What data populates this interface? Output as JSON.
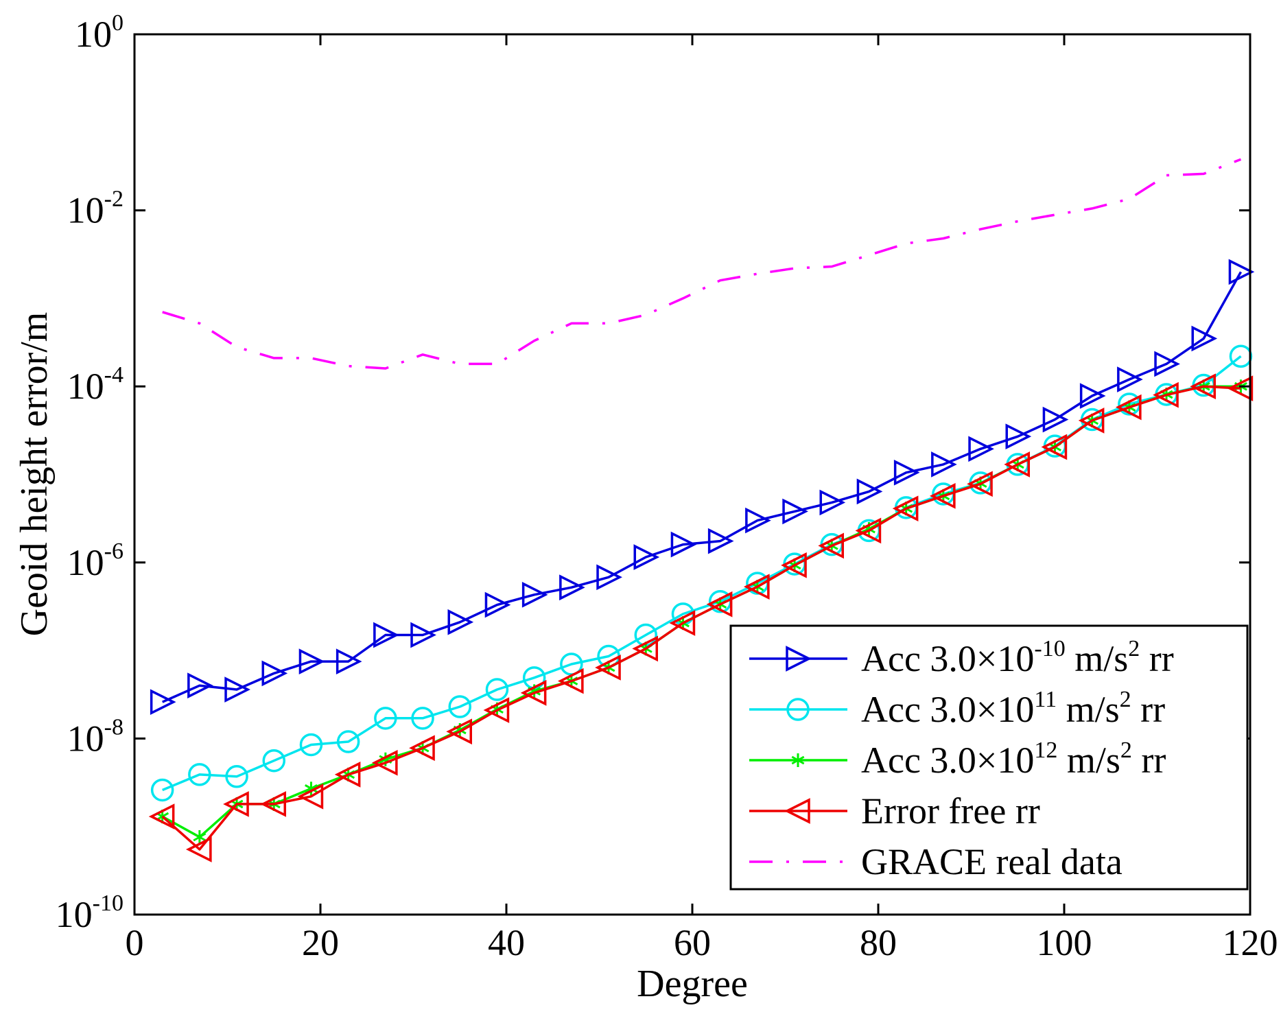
{
  "chart_data": {
    "type": "line",
    "title": "",
    "xlabel": "Degree",
    "ylabel": "Geoid height error/m",
    "xlim": [
      0,
      120
    ],
    "ylim": [
      1e-10,
      1
    ],
    "yscale": "log",
    "x_ticks": [
      "0",
      "20",
      "40",
      "60",
      "80",
      "100",
      "120"
    ],
    "y_ticks": [
      {
        "base": "10",
        "exp": "0"
      },
      {
        "base": "10",
        "exp": "-2"
      },
      {
        "base": "10",
        "exp": "-4"
      },
      {
        "base": "10",
        "exp": "-6"
      },
      {
        "base": "10",
        "exp": "-8"
      },
      {
        "base": "10",
        "exp": "-10"
      }
    ],
    "grid": false,
    "legend_position": "bottom-right",
    "series": [
      {
        "name": "Acc 3.0×10-10 m/s2 rr",
        "legend": {
          "pre": "Acc 3.0×10",
          "exp": "-10",
          "mid": " m/s",
          "sup2": "2",
          "post": " rr"
        },
        "color": "#0000dd",
        "marker": "triangle-right",
        "line": "solid",
        "x": [
          3,
          7,
          11,
          15,
          19,
          23,
          27,
          31,
          35,
          39,
          43,
          47,
          51,
          55,
          59,
          63,
          67,
          71,
          75,
          79,
          83,
          87,
          91,
          95,
          99,
          103,
          107,
          111,
          115,
          119
        ],
        "y": [
          2.6e-08,
          4e-08,
          3.6e-08,
          5.5e-08,
          7.5e-08,
          7.5e-08,
          1.5e-07,
          1.5e-07,
          2.1e-07,
          3.3e-07,
          4.3e-07,
          5.2e-07,
          6.8e-07,
          1.15e-06,
          1.6e-06,
          1.75e-06,
          3e-06,
          3.8e-06,
          4.8e-06,
          6.4e-06,
          1.05e-05,
          1.3e-05,
          1.95e-05,
          2.7e-05,
          4.2e-05,
          7.8e-05,
          0.00012,
          0.00018,
          0.00035,
          0.002
        ]
      },
      {
        "name": "Acc 3.0×1011 m/s2 rr",
        "legend": {
          "pre": "Acc 3.0×10",
          "exp": "11",
          "mid": " m/s",
          "sup2": "2",
          "post": " rr"
        },
        "color": "#00e5ee",
        "marker": "circle",
        "line": "solid",
        "x": [
          3,
          7,
          11,
          15,
          19,
          23,
          27,
          31,
          35,
          39,
          43,
          47,
          51,
          55,
          59,
          63,
          67,
          71,
          75,
          79,
          83,
          87,
          91,
          95,
          99,
          103,
          107,
          111,
          115,
          119
        ],
        "y": [
          2.6e-09,
          3.9e-09,
          3.7e-09,
          5.6e-09,
          8.5e-09,
          9.2e-09,
          1.7e-08,
          1.7e-08,
          2.3e-08,
          3.6e-08,
          4.9e-08,
          7e-08,
          8.6e-08,
          1.5e-07,
          2.6e-07,
          3.6e-07,
          5.8e-07,
          9.6e-07,
          1.6e-06,
          2.3e-06,
          4.2e-06,
          6e-06,
          8e-06,
          1.3e-05,
          2.1e-05,
          4.2e-05,
          6.3e-05,
          8.1e-05,
          0.000103,
          0.00022
        ]
      },
      {
        "name": "Acc 3.0×1012 m/s2 rr",
        "legend": {
          "pre": "Acc 3.0×10",
          "exp": "12",
          "mid": " m/s",
          "sup2": "2",
          "post": " rr"
        },
        "color": "#00ee00",
        "marker": "asterisk",
        "line": "solid",
        "x": [
          3,
          7,
          11,
          15,
          19,
          23,
          27,
          31,
          35,
          39,
          43,
          47,
          51,
          55,
          59,
          63,
          67,
          71,
          75,
          79,
          83,
          87,
          91,
          95,
          99,
          103,
          107,
          111,
          115,
          119
        ],
        "y": [
          1.3e-09,
          7.6e-10,
          1.8e-09,
          1.8e-09,
          2.7e-09,
          3.9e-09,
          5.8e-09,
          7.8e-09,
          1.25e-08,
          2.15e-08,
          3.45e-08,
          4.5e-08,
          6.4e-08,
          1.05e-07,
          2.05e-07,
          3.35e-07,
          5.3e-07,
          9.3e-07,
          1.55e-06,
          2.4e-06,
          4.1e-06,
          5.7e-06,
          7.9e-06,
          1.3e-05,
          2.05e-05,
          4.1e-05,
          5.8e-05,
          8.1e-05,
          0.0001,
          0.0001
        ]
      },
      {
        "name": "Error free rr",
        "legend": {
          "pre": "Error free rr",
          "exp": "",
          "mid": "",
          "sup2": "",
          "post": ""
        },
        "color": "#ee0000",
        "marker": "triangle-left",
        "line": "solid",
        "x": [
          3,
          7,
          11,
          15,
          19,
          23,
          27,
          31,
          35,
          39,
          43,
          47,
          51,
          55,
          59,
          63,
          67,
          71,
          75,
          79,
          83,
          87,
          91,
          95,
          99,
          103,
          107,
          111,
          115,
          119
        ],
        "y": [
          1.3e-09,
          5.5e-10,
          1.8e-09,
          1.8e-09,
          2.2e-09,
          3.9e-09,
          5.3e-09,
          7.8e-09,
          1.2e-08,
          2.1e-08,
          3.3e-08,
          4.5e-08,
          6.4e-08,
          1.05e-07,
          2.05e-07,
          3.35e-07,
          5.3e-07,
          9.3e-07,
          1.55e-06,
          2.3e-06,
          4.1e-06,
          5.7e-06,
          7.8e-06,
          1.3e-05,
          2.05e-05,
          4.1e-05,
          5.8e-05,
          8e-05,
          0.0001,
          9.5e-05
        ]
      },
      {
        "name": "GRACE real data",
        "legend": {
          "pre": "GRACE real data",
          "exp": "",
          "mid": "",
          "sup2": "",
          "post": ""
        },
        "color": "#ff00ff",
        "marker": "none",
        "line": "dashdot",
        "x": [
          3,
          7,
          11,
          15,
          19,
          23,
          27,
          31,
          35,
          39,
          43,
          47,
          51,
          55,
          59,
          63,
          67,
          71,
          75,
          79,
          83,
          87,
          91,
          95,
          99,
          103,
          107,
          111,
          115,
          119
        ],
        "y": [
          0.0007,
          0.00052,
          0.00028,
          0.00021,
          0.00021,
          0.00017,
          0.00016,
          0.00023,
          0.00018,
          0.00018,
          0.00033,
          0.00052,
          0.00052,
          0.00065,
          0.001,
          0.0016,
          0.0019,
          0.0022,
          0.0023,
          0.0031,
          0.0042,
          0.0048,
          0.0061,
          0.0075,
          0.0089,
          0.0105,
          0.0135,
          0.025,
          0.026,
          0.038
        ]
      }
    ]
  }
}
